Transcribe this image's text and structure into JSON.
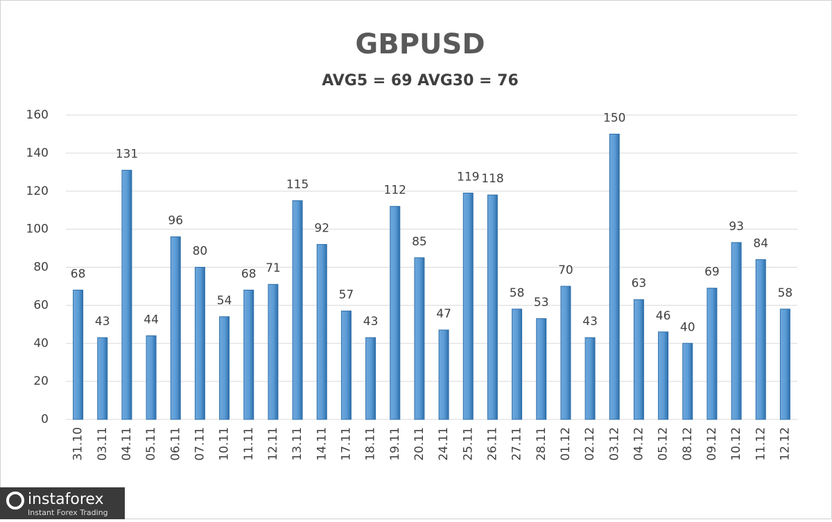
{
  "chart_data": {
    "type": "bar",
    "title": "GBPUSD",
    "subtitle": "AVG5 = 69 AVG30 = 76",
    "categories": [
      "31.10",
      "03.11",
      "04.11",
      "05.11",
      "06.11",
      "07.11",
      "10.11",
      "11.11",
      "12.11",
      "13.11",
      "14.11",
      "17.11",
      "18.11",
      "19.11",
      "20.11",
      "24.11",
      "25.11",
      "26.11",
      "27.11",
      "28.11",
      "01.12",
      "02.12",
      "03.12",
      "04.12",
      "05.12",
      "08.12",
      "09.12",
      "10.12",
      "11.12",
      "12.12"
    ],
    "values": [
      68,
      43,
      131,
      44,
      96,
      80,
      54,
      68,
      71,
      115,
      92,
      57,
      43,
      112,
      85,
      47,
      119,
      118,
      58,
      53,
      70,
      43,
      150,
      63,
      46,
      40,
      69,
      93,
      84,
      58
    ],
    "color": "#5b9bd5",
    "ylim": [
      0,
      160
    ],
    "yticks": [
      0,
      20,
      40,
      60,
      80,
      100,
      120,
      140,
      160
    ],
    "grid": true
  },
  "watermark": {
    "brand": "instaforex",
    "tagline": "Instant Forex Trading"
  }
}
